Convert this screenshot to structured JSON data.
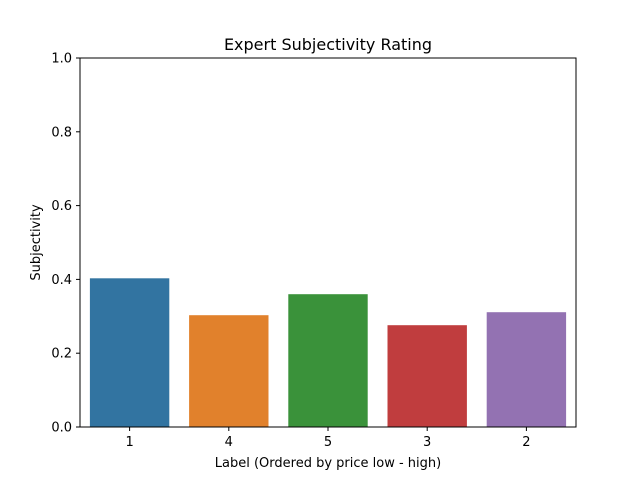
{
  "chart_data": {
    "type": "bar",
    "title": "Expert Subjectivity Rating",
    "xlabel": "Label (Ordered by price low - high)",
    "ylabel": "Subjectivity",
    "categories": [
      "1",
      "4",
      "5",
      "3",
      "2"
    ],
    "values": [
      0.403,
      0.303,
      0.36,
      0.276,
      0.311
    ],
    "colors": [
      "#3274a1",
      "#e1812c",
      "#3a923a",
      "#c03d3e",
      "#9372b2"
    ],
    "ylim": [
      0,
      1.0
    ],
    "yticks": [
      "0.0",
      "0.2",
      "0.4",
      "0.6",
      "0.8",
      "1.0"
    ],
    "grid": false,
    "legend": "none"
  }
}
